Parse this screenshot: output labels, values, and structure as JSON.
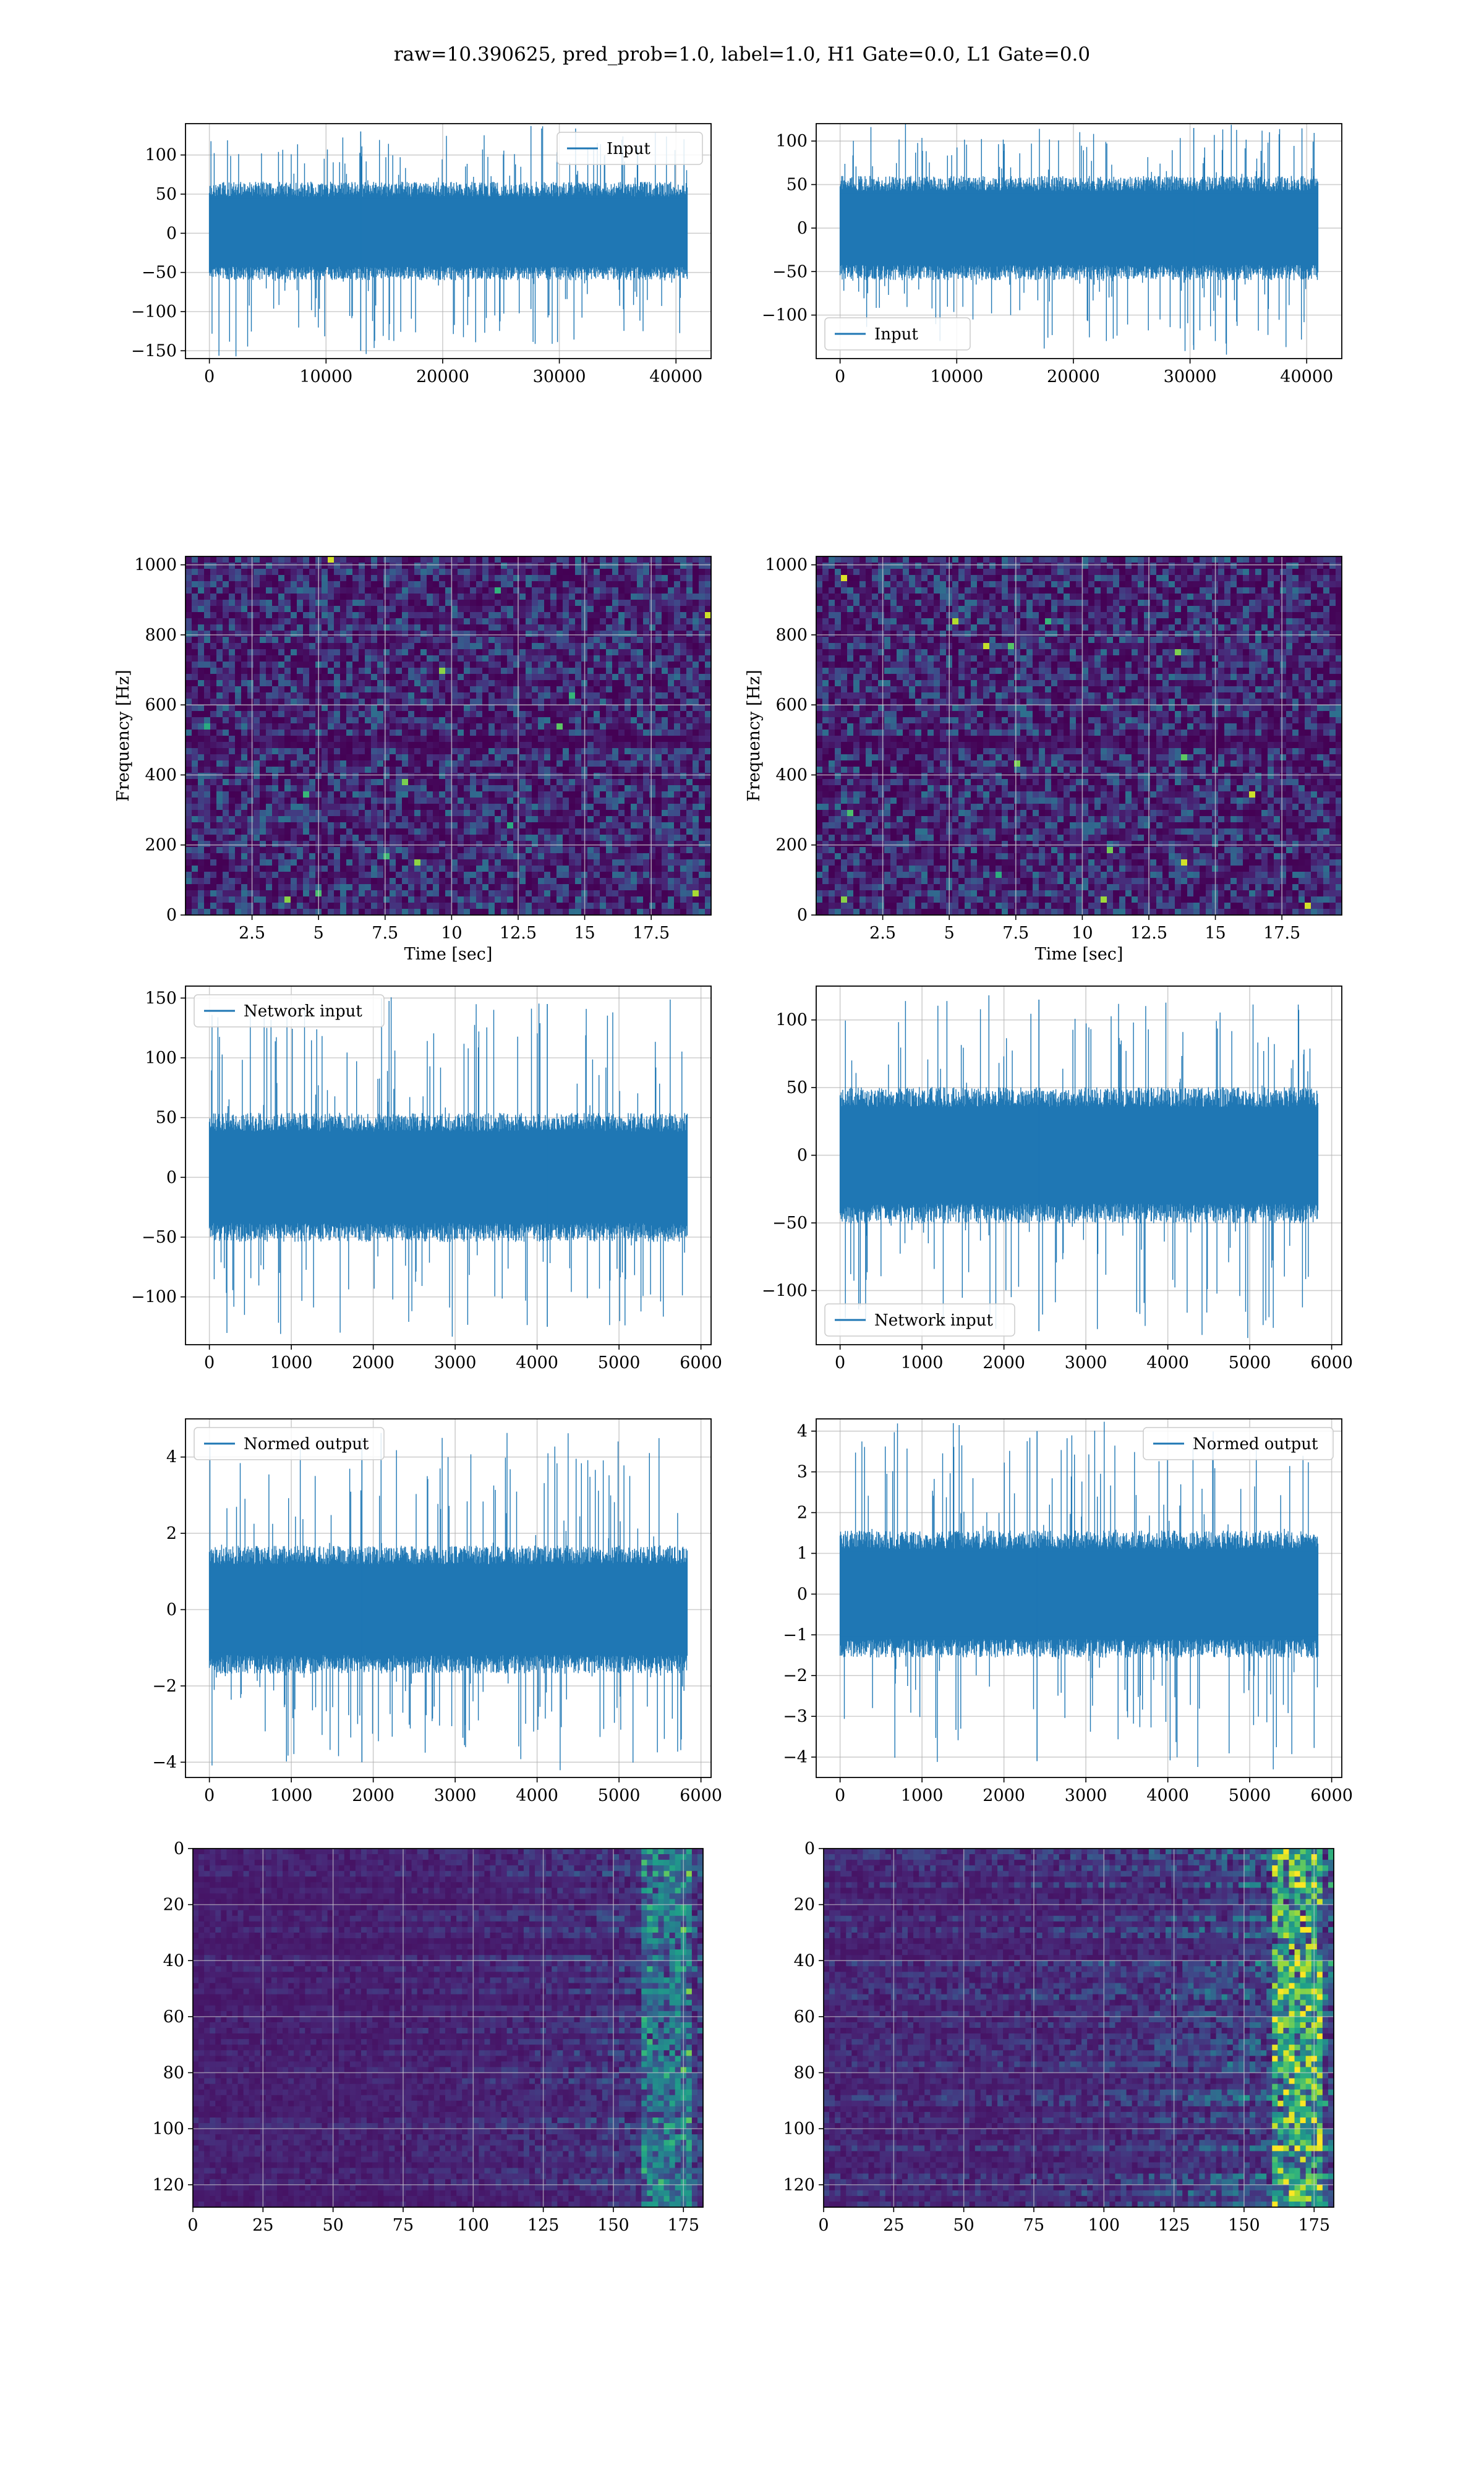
{
  "figure": {
    "suptitle": "raw=10.390625, pred_prob=1.0, label=1.0, H1 Gate=0.0, L1 Gate=0.0",
    "colors": {
      "line": "#1f77b4",
      "grid": "#b0b0b0",
      "viridis_low": "#440154"
    }
  },
  "chart_data": [
    {
      "id": "input-h1",
      "type": "line",
      "x": [
        0,
        40960
      ],
      "xlim": [
        -2048,
        43008
      ],
      "ylim": [
        -160,
        140
      ],
      "xticks": [
        0,
        10000,
        20000,
        30000,
        40000
      ],
      "yticks": [
        -150,
        -100,
        -50,
        0,
        50,
        100
      ],
      "envelope": {
        "lo": -50,
        "hi": 55,
        "peak_max": 130,
        "peak_min": -150
      },
      "xlabel": "",
      "ylabel": "",
      "series": [
        {
          "name": "Input"
        }
      ],
      "legend": "top-right",
      "grid": true
    },
    {
      "id": "input-l1",
      "type": "line",
      "x": [
        0,
        40960
      ],
      "xlim": [
        -2048,
        43008
      ],
      "ylim": [
        -150,
        120
      ],
      "xticks": [
        0,
        10000,
        20000,
        30000,
        40000
      ],
      "yticks": [
        -100,
        -50,
        0,
        50,
        100
      ],
      "envelope": {
        "lo": -50,
        "hi": 50,
        "peak_max": 115,
        "peak_min": -140
      },
      "xlabel": "",
      "ylabel": "",
      "series": [
        {
          "name": "Input"
        }
      ],
      "legend": "bottom-left",
      "grid": true
    },
    {
      "id": "spectrogram-h1",
      "type": "heatmap",
      "xlim": [
        0,
        19.75
      ],
      "ylim": [
        0,
        1024
      ],
      "xticks": [
        2.5,
        5.0,
        7.5,
        10.0,
        12.5,
        15.0,
        17.5
      ],
      "yticks": [
        0,
        200,
        400,
        600,
        800,
        1000
      ],
      "xlabel": "Time [sec]",
      "ylabel": "Frequency [Hz]",
      "colormap": "viridis",
      "grid": true
    },
    {
      "id": "spectrogram-l1",
      "type": "heatmap",
      "xlim": [
        0,
        19.75
      ],
      "ylim": [
        0,
        1024
      ],
      "xticks": [
        2.5,
        5.0,
        7.5,
        10.0,
        12.5,
        15.0,
        17.5
      ],
      "yticks": [
        0,
        200,
        400,
        600,
        800,
        1000
      ],
      "xlabel": "Time [sec]",
      "ylabel": "Frequency [Hz]",
      "colormap": "viridis",
      "grid": true
    },
    {
      "id": "network-input-h1",
      "type": "line",
      "x": [
        0,
        5832
      ],
      "xlim": [
        -291.6,
        6123.6
      ],
      "ylim": [
        -140,
        160
      ],
      "xticks": [
        0,
        1000,
        2000,
        3000,
        4000,
        5000,
        6000
      ],
      "yticks": [
        -100,
        -50,
        0,
        50,
        100,
        150
      ],
      "envelope": {
        "lo": -45,
        "hi": 45,
        "peak_max": 145,
        "peak_min": -125
      },
      "xlabel": "",
      "ylabel": "",
      "series": [
        {
          "name": "Network input"
        }
      ],
      "legend": "top-left",
      "grid": true
    },
    {
      "id": "network-input-l1",
      "type": "line",
      "x": [
        0,
        5832
      ],
      "xlim": [
        -291.6,
        6123.6
      ],
      "ylim": [
        -140,
        125
      ],
      "xticks": [
        0,
        1000,
        2000,
        3000,
        4000,
        5000,
        6000
      ],
      "yticks": [
        -100,
        -50,
        0,
        50,
        100
      ],
      "envelope": {
        "lo": -42,
        "hi": 42,
        "peak_max": 115,
        "peak_min": -130
      },
      "xlabel": "",
      "ylabel": "",
      "series": [
        {
          "name": "Network input"
        }
      ],
      "legend": "bottom-left",
      "grid": true
    },
    {
      "id": "normed-output-h1",
      "type": "line",
      "x": [
        0,
        5832
      ],
      "xlim": [
        -291.6,
        6123.6
      ],
      "ylim": [
        -4.4,
        5.0
      ],
      "xticks": [
        0,
        1000,
        2000,
        3000,
        4000,
        5000,
        6000
      ],
      "yticks": [
        -4,
        -2,
        0,
        2,
        4
      ],
      "envelope": {
        "lo": -1.4,
        "hi": 1.4,
        "peak_max": 4.5,
        "peak_min": -4.0
      },
      "xlabel": "",
      "ylabel": "",
      "series": [
        {
          "name": "Normed output"
        }
      ],
      "legend": "top-left",
      "grid": true
    },
    {
      "id": "normed-output-l1",
      "type": "line",
      "x": [
        0,
        5832
      ],
      "xlim": [
        -291.6,
        6123.6
      ],
      "ylim": [
        -4.5,
        4.3
      ],
      "xticks": [
        0,
        1000,
        2000,
        3000,
        4000,
        5000,
        6000
      ],
      "yticks": [
        -4,
        -3,
        -2,
        -1,
        0,
        1,
        2,
        3,
        4
      ],
      "envelope": {
        "lo": -1.3,
        "hi": 1.3,
        "peak_max": 4.0,
        "peak_min": -4.1
      },
      "xlabel": "",
      "ylabel": "",
      "series": [
        {
          "name": "Normed output"
        }
      ],
      "legend": "top-right",
      "grid": true
    },
    {
      "id": "feature-map-h1",
      "type": "heatmap",
      "xlim": [
        0,
        182
      ],
      "ylim": [
        128,
        0
      ],
      "xticks": [
        0,
        25,
        50,
        75,
        100,
        125,
        150,
        175
      ],
      "yticks": [
        0,
        20,
        40,
        60,
        80,
        100,
        120
      ],
      "xlabel": "",
      "ylabel": "",
      "colormap": "viridis",
      "grid": true
    },
    {
      "id": "feature-map-l1",
      "type": "heatmap",
      "xlim": [
        0,
        182
      ],
      "ylim": [
        128,
        0
      ],
      "xticks": [
        0,
        25,
        50,
        75,
        100,
        125,
        150,
        175
      ],
      "yticks": [
        0,
        20,
        40,
        60,
        80,
        100,
        120
      ],
      "xlabel": "",
      "ylabel": "",
      "colormap": "viridis",
      "grid": true
    }
  ]
}
